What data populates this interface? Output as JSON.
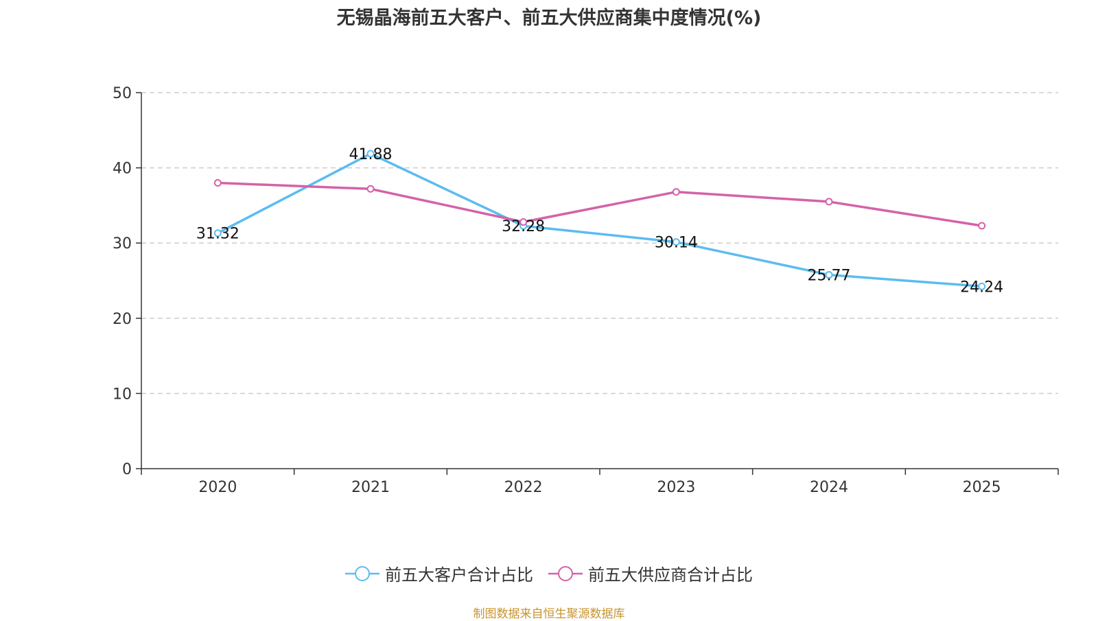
{
  "chart_data": {
    "type": "line",
    "title": "无锡晶海前五大客户、前五大供应商集中度情况(%)",
    "categories": [
      "2020",
      "2021",
      "2022",
      "2023",
      "2024",
      "2025"
    ],
    "ylim": [
      0,
      50
    ],
    "yticks": [
      0,
      10,
      20,
      30,
      40,
      50
    ],
    "grid": true,
    "legend_position": "bottom",
    "series": [
      {
        "name": "前五大客户合计占比",
        "color": "#5bbcf0",
        "values": [
          31.32,
          41.88,
          32.28,
          30.14,
          25.77,
          24.24
        ],
        "labels": [
          "31.32",
          "41.88",
          "32.28",
          "30.14",
          "25.77",
          "24.24"
        ]
      },
      {
        "name": "前五大供应商合计占比",
        "color": "#d462a8",
        "values": [
          38.0,
          37.2,
          32.8,
          36.8,
          35.5,
          32.3
        ]
      }
    ],
    "source": "制图数据来自恒生聚源数据库"
  }
}
